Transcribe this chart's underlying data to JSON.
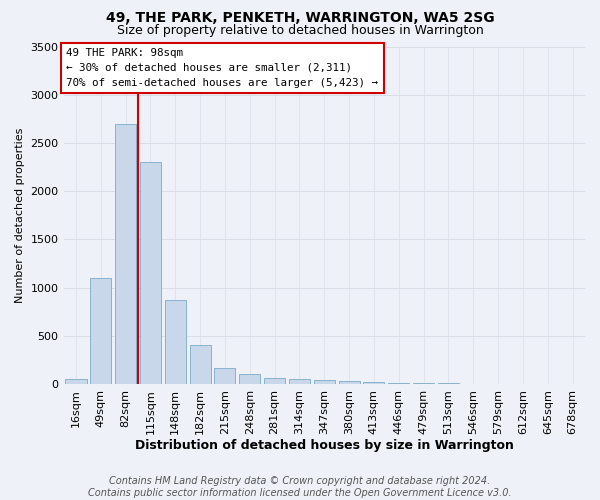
{
  "title": "49, THE PARK, PENKETH, WARRINGTON, WA5 2SG",
  "subtitle": "Size of property relative to detached houses in Warrington",
  "xlabel": "Distribution of detached houses by size in Warrington",
  "ylabel": "Number of detached properties",
  "bin_labels": [
    "16sqm",
    "49sqm",
    "82sqm",
    "115sqm",
    "148sqm",
    "182sqm",
    "215sqm",
    "248sqm",
    "281sqm",
    "314sqm",
    "347sqm",
    "380sqm",
    "413sqm",
    "446sqm",
    "479sqm",
    "513sqm",
    "546sqm",
    "579sqm",
    "612sqm",
    "645sqm",
    "678sqm"
  ],
  "bar_values": [
    50,
    1100,
    2700,
    2300,
    870,
    400,
    170,
    100,
    65,
    55,
    45,
    35,
    20,
    10,
    8,
    5,
    4,
    3,
    2,
    2,
    1
  ],
  "bar_color": "#c8d8ea",
  "bar_edge_color": "#7aaac8",
  "ylim_max": 3500,
  "yticks": [
    0,
    500,
    1000,
    1500,
    2000,
    2500,
    3000,
    3500
  ],
  "red_line_x": 2.5,
  "annotation_line1": "49 THE PARK: 98sqm",
  "annotation_line2": "← 30% of detached houses are smaller (2,311)",
  "annotation_line3": "70% of semi-detached houses are larger (5,423) →",
  "red_line_color": "#cc0000",
  "bg_color": "#eef2f8",
  "grid_color": "#d8dde8",
  "footer_line1": "Contains HM Land Registry data © Crown copyright and database right 2024.",
  "footer_line2": "Contains public sector information licensed under the Open Government Licence v3.0."
}
